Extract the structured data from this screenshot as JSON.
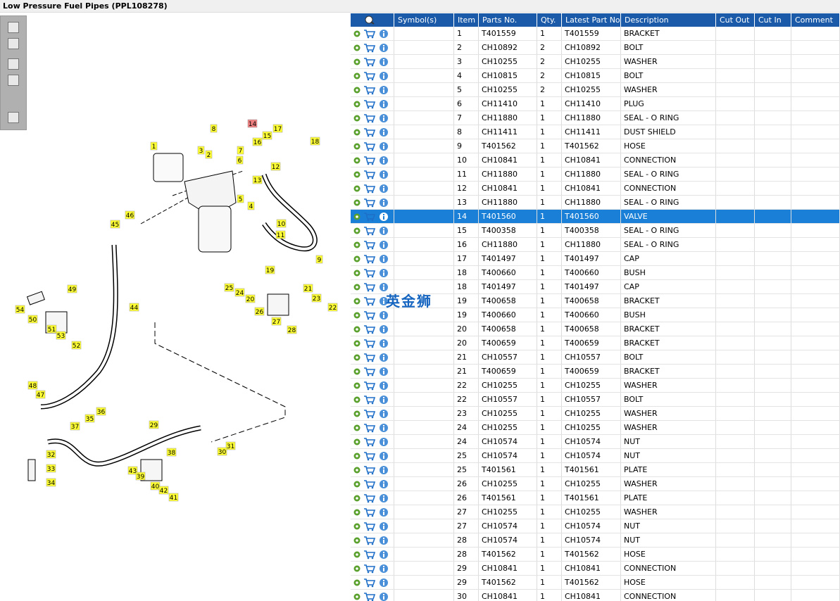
{
  "title": "Low Pressure Fuel Pipes (PPL108278)",
  "diagram": {
    "callouts": [
      1,
      2,
      3,
      4,
      5,
      6,
      7,
      8,
      14,
      15,
      16,
      17,
      18,
      12,
      13,
      10,
      11,
      9,
      46,
      45,
      19,
      25,
      24,
      20,
      21,
      23,
      22,
      26,
      27,
      28,
      49,
      54,
      50,
      44,
      51,
      53,
      52,
      48,
      47,
      29,
      36,
      35,
      37,
      31,
      30,
      38,
      32,
      33,
      43,
      39,
      40,
      42,
      41,
      34
    ]
  },
  "table": {
    "headers": [
      "Symbol(s)",
      "Item",
      "Parts No.",
      "Qty.",
      "Latest Part No.",
      "Description",
      "Cut Out",
      "Cut In",
      "Comment"
    ],
    "selected_row": 13,
    "rows": [
      [
        1,
        "T401559",
        1,
        "T401559",
        "BRACKET"
      ],
      [
        2,
        "CH10892",
        2,
        "CH10892",
        "BOLT"
      ],
      [
        3,
        "CH10255",
        2,
        "CH10255",
        "WASHER"
      ],
      [
        4,
        "CH10815",
        2,
        "CH10815",
        "BOLT"
      ],
      [
        5,
        "CH10255",
        2,
        "CH10255",
        "WASHER"
      ],
      [
        6,
        "CH11410",
        1,
        "CH11410",
        "PLUG"
      ],
      [
        7,
        "CH11880",
        1,
        "CH11880",
        "SEAL - O RING"
      ],
      [
        8,
        "CH11411",
        1,
        "CH11411",
        "DUST SHIELD"
      ],
      [
        9,
        "T401562",
        1,
        "T401562",
        "HOSE"
      ],
      [
        10,
        "CH10841",
        1,
        "CH10841",
        "CONNECTION"
      ],
      [
        11,
        "CH11880",
        1,
        "CH11880",
        "SEAL - O RING"
      ],
      [
        12,
        "CH10841",
        1,
        "CH10841",
        "CONNECTION"
      ],
      [
        13,
        "CH11880",
        1,
        "CH11880",
        "SEAL - O RING"
      ],
      [
        14,
        "T401560",
        1,
        "T401560",
        "VALVE"
      ],
      [
        15,
        "T400358",
        1,
        "T400358",
        "SEAL - O RING"
      ],
      [
        16,
        "CH11880",
        1,
        "CH11880",
        "SEAL - O RING"
      ],
      [
        17,
        "T401497",
        1,
        "T401497",
        "CAP"
      ],
      [
        18,
        "T400660",
        1,
        "T400660",
        "BUSH"
      ],
      [
        18,
        "T401497",
        1,
        "T401497",
        "CAP"
      ],
      [
        19,
        "T400658",
        1,
        "T400658",
        "BRACKET"
      ],
      [
        19,
        "T400660",
        1,
        "T400660",
        "BUSH"
      ],
      [
        20,
        "T400658",
        1,
        "T400658",
        "BRACKET"
      ],
      [
        20,
        "T400659",
        1,
        "T400659",
        "BRACKET"
      ],
      [
        21,
        "CH10557",
        1,
        "CH10557",
        "BOLT"
      ],
      [
        21,
        "T400659",
        1,
        "T400659",
        "BRACKET"
      ],
      [
        22,
        "CH10255",
        1,
        "CH10255",
        "WASHER"
      ],
      [
        22,
        "CH10557",
        1,
        "CH10557",
        "BOLT"
      ],
      [
        23,
        "CH10255",
        1,
        "CH10255",
        "WASHER"
      ],
      [
        24,
        "CH10255",
        1,
        "CH10255",
        "WASHER"
      ],
      [
        24,
        "CH10574",
        1,
        "CH10574",
        "NUT"
      ],
      [
        25,
        "CH10574",
        1,
        "CH10574",
        "NUT"
      ],
      [
        25,
        "T401561",
        1,
        "T401561",
        "PLATE"
      ],
      [
        26,
        "CH10255",
        1,
        "CH10255",
        "WASHER"
      ],
      [
        26,
        "T401561",
        1,
        "T401561",
        "PLATE"
      ],
      [
        27,
        "CH10255",
        1,
        "CH10255",
        "WASHER"
      ],
      [
        27,
        "CH10574",
        1,
        "CH10574",
        "NUT"
      ],
      [
        28,
        "CH10574",
        1,
        "CH10574",
        "NUT"
      ],
      [
        28,
        "T401562",
        1,
        "T401562",
        "HOSE"
      ],
      [
        29,
        "CH10841",
        1,
        "CH10841",
        "CONNECTION"
      ],
      [
        29,
        "T401562",
        1,
        "T401562",
        "HOSE"
      ],
      [
        30,
        "CH10841",
        1,
        "CH10841",
        "CONNECTION"
      ]
    ]
  },
  "watermark": "英金狮"
}
